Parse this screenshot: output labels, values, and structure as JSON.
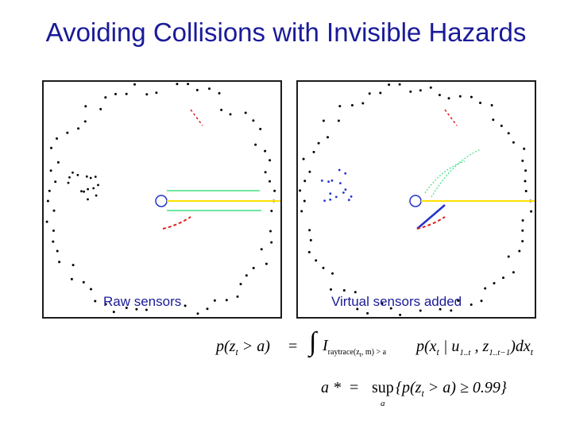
{
  "slide": {
    "title": "Avoiding Collisions with Invisible Hazards",
    "panels": [
      {
        "caption": "Raw sensors",
        "colors": {
          "points": "#000000",
          "beam": "#ffe000",
          "rays": "#40e080",
          "hazard": "#dd2222",
          "robot": "#2233cc"
        }
      },
      {
        "caption": "Virtual sensors added",
        "colors": {
          "points": "#000000",
          "beam": "#ffe000",
          "rays": "#40e080",
          "hazard": "#dd2222",
          "robot": "#2233cc",
          "virtual": "#2233cc"
        }
      }
    ],
    "formula1": {
      "lhs": "p(z",
      "lhs_sub": "t",
      "lhs_rest": " > a)",
      "eq": "=",
      "integral": "∫",
      "indicator": "I",
      "indicator_sub": "raytrace(z",
      "indicator_sub2": "t",
      "indicator_sub3": ", m) > a",
      "rhs": "p(x",
      "rhs_sub": "t",
      "rhs_mid": " | u",
      "rhs_sub2": "1..t",
      "rhs_mid2": " , z",
      "rhs_sub3": "1..t−1",
      "rhs_end": ")dx",
      "rhs_sub4": "t"
    },
    "formula2": {
      "lhs": "a *",
      "eq": "=",
      "sup": "sup",
      "sup_sub": "a",
      "body": "{p(z",
      "body_sub": "t",
      "body_end": " > a) ≥ 0.99}"
    }
  }
}
